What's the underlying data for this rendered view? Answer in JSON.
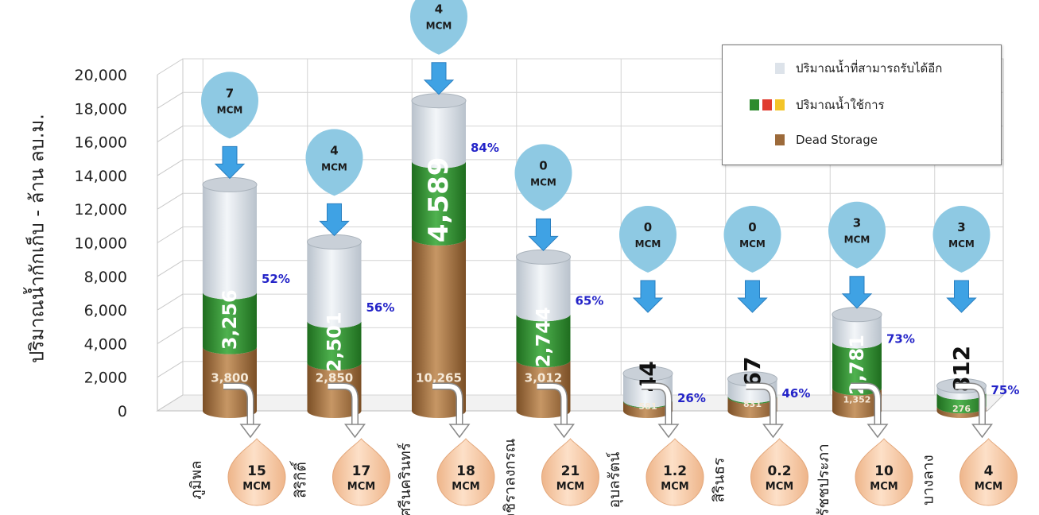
{
  "chart_data": {
    "type": "bar",
    "ylabel": "ปริมาณน้ำกักเก็บ - ล้าน ลบ.ม.",
    "ylim": [
      0,
      20000
    ],
    "yticks": [
      "20,000",
      "18,000",
      "16,000",
      "14,000",
      "12,000",
      "10,000",
      "8,000",
      "6,000",
      "4,000",
      "2,000",
      "0"
    ],
    "categories": [
      "ภูมิพล",
      "สิริกิติ์",
      "ศรีนครินทร์",
      "วชิราลงกรณ",
      "อุบลรัตน์",
      "สิรินธร",
      "รัชชประภา",
      "บางลาง"
    ],
    "series": [
      {
        "name": "Dead Storage",
        "values": [
          3800,
          2850,
          10265,
          3012,
          581,
          831,
          1352,
          276
        ],
        "labels": [
          "3,800",
          "2,850",
          "10,265",
          "3,012",
          "581",
          "831",
          "1,352",
          "276"
        ]
      },
      {
        "name": "ปริมาณน้ำใช้การ",
        "values": [
          3256,
          2501,
          4589,
          2744,
          44,
          67,
          2781,
          812
        ],
        "labels": [
          "3,256",
          "2,501",
          "4,589",
          "2,744",
          "44",
          "67",
          "2,781",
          "812"
        ]
      },
      {
        "name": "ปริมาณน้ำที่สามารถรับได้อีก",
        "values": [
          6400,
          4700,
          3600,
          3400,
          1600,
          1000,
          1600,
          400
        ]
      }
    ],
    "percent_labels": [
      "52%",
      "56%",
      "84%",
      "65%",
      "26%",
      "46%",
      "73%",
      "75%"
    ],
    "inflow_values": [
      "7",
      "4",
      "4",
      "0",
      "0",
      "0",
      "3",
      "3"
    ],
    "release_values": [
      "15",
      "17",
      "18",
      "21",
      "1.2",
      "0.2",
      "10",
      "4"
    ],
    "unit": "MCM",
    "legend": [
      {
        "label": "ปริมาณน้ำที่สามารถรับได้อีก",
        "colors": [
          "#dde3ea"
        ]
      },
      {
        "label": "ปริมาณน้ำใช้การ",
        "colors": [
          "#2e8b2e",
          "#e03b2f",
          "#f3c428"
        ]
      },
      {
        "label": "Dead Storage",
        "colors": [
          "#9c6a3a"
        ]
      }
    ],
    "legend_position": "top-right",
    "grid": true,
    "colors": {
      "dead": "#9c6a3a",
      "usable": "#2e8b2e",
      "available": "#dde3ea",
      "percent_text": "#2424c8",
      "inflow_marker": "#8ec9e3",
      "arrow": "#3fa2e4",
      "release_drop": "#f7c9a4"
    }
  }
}
